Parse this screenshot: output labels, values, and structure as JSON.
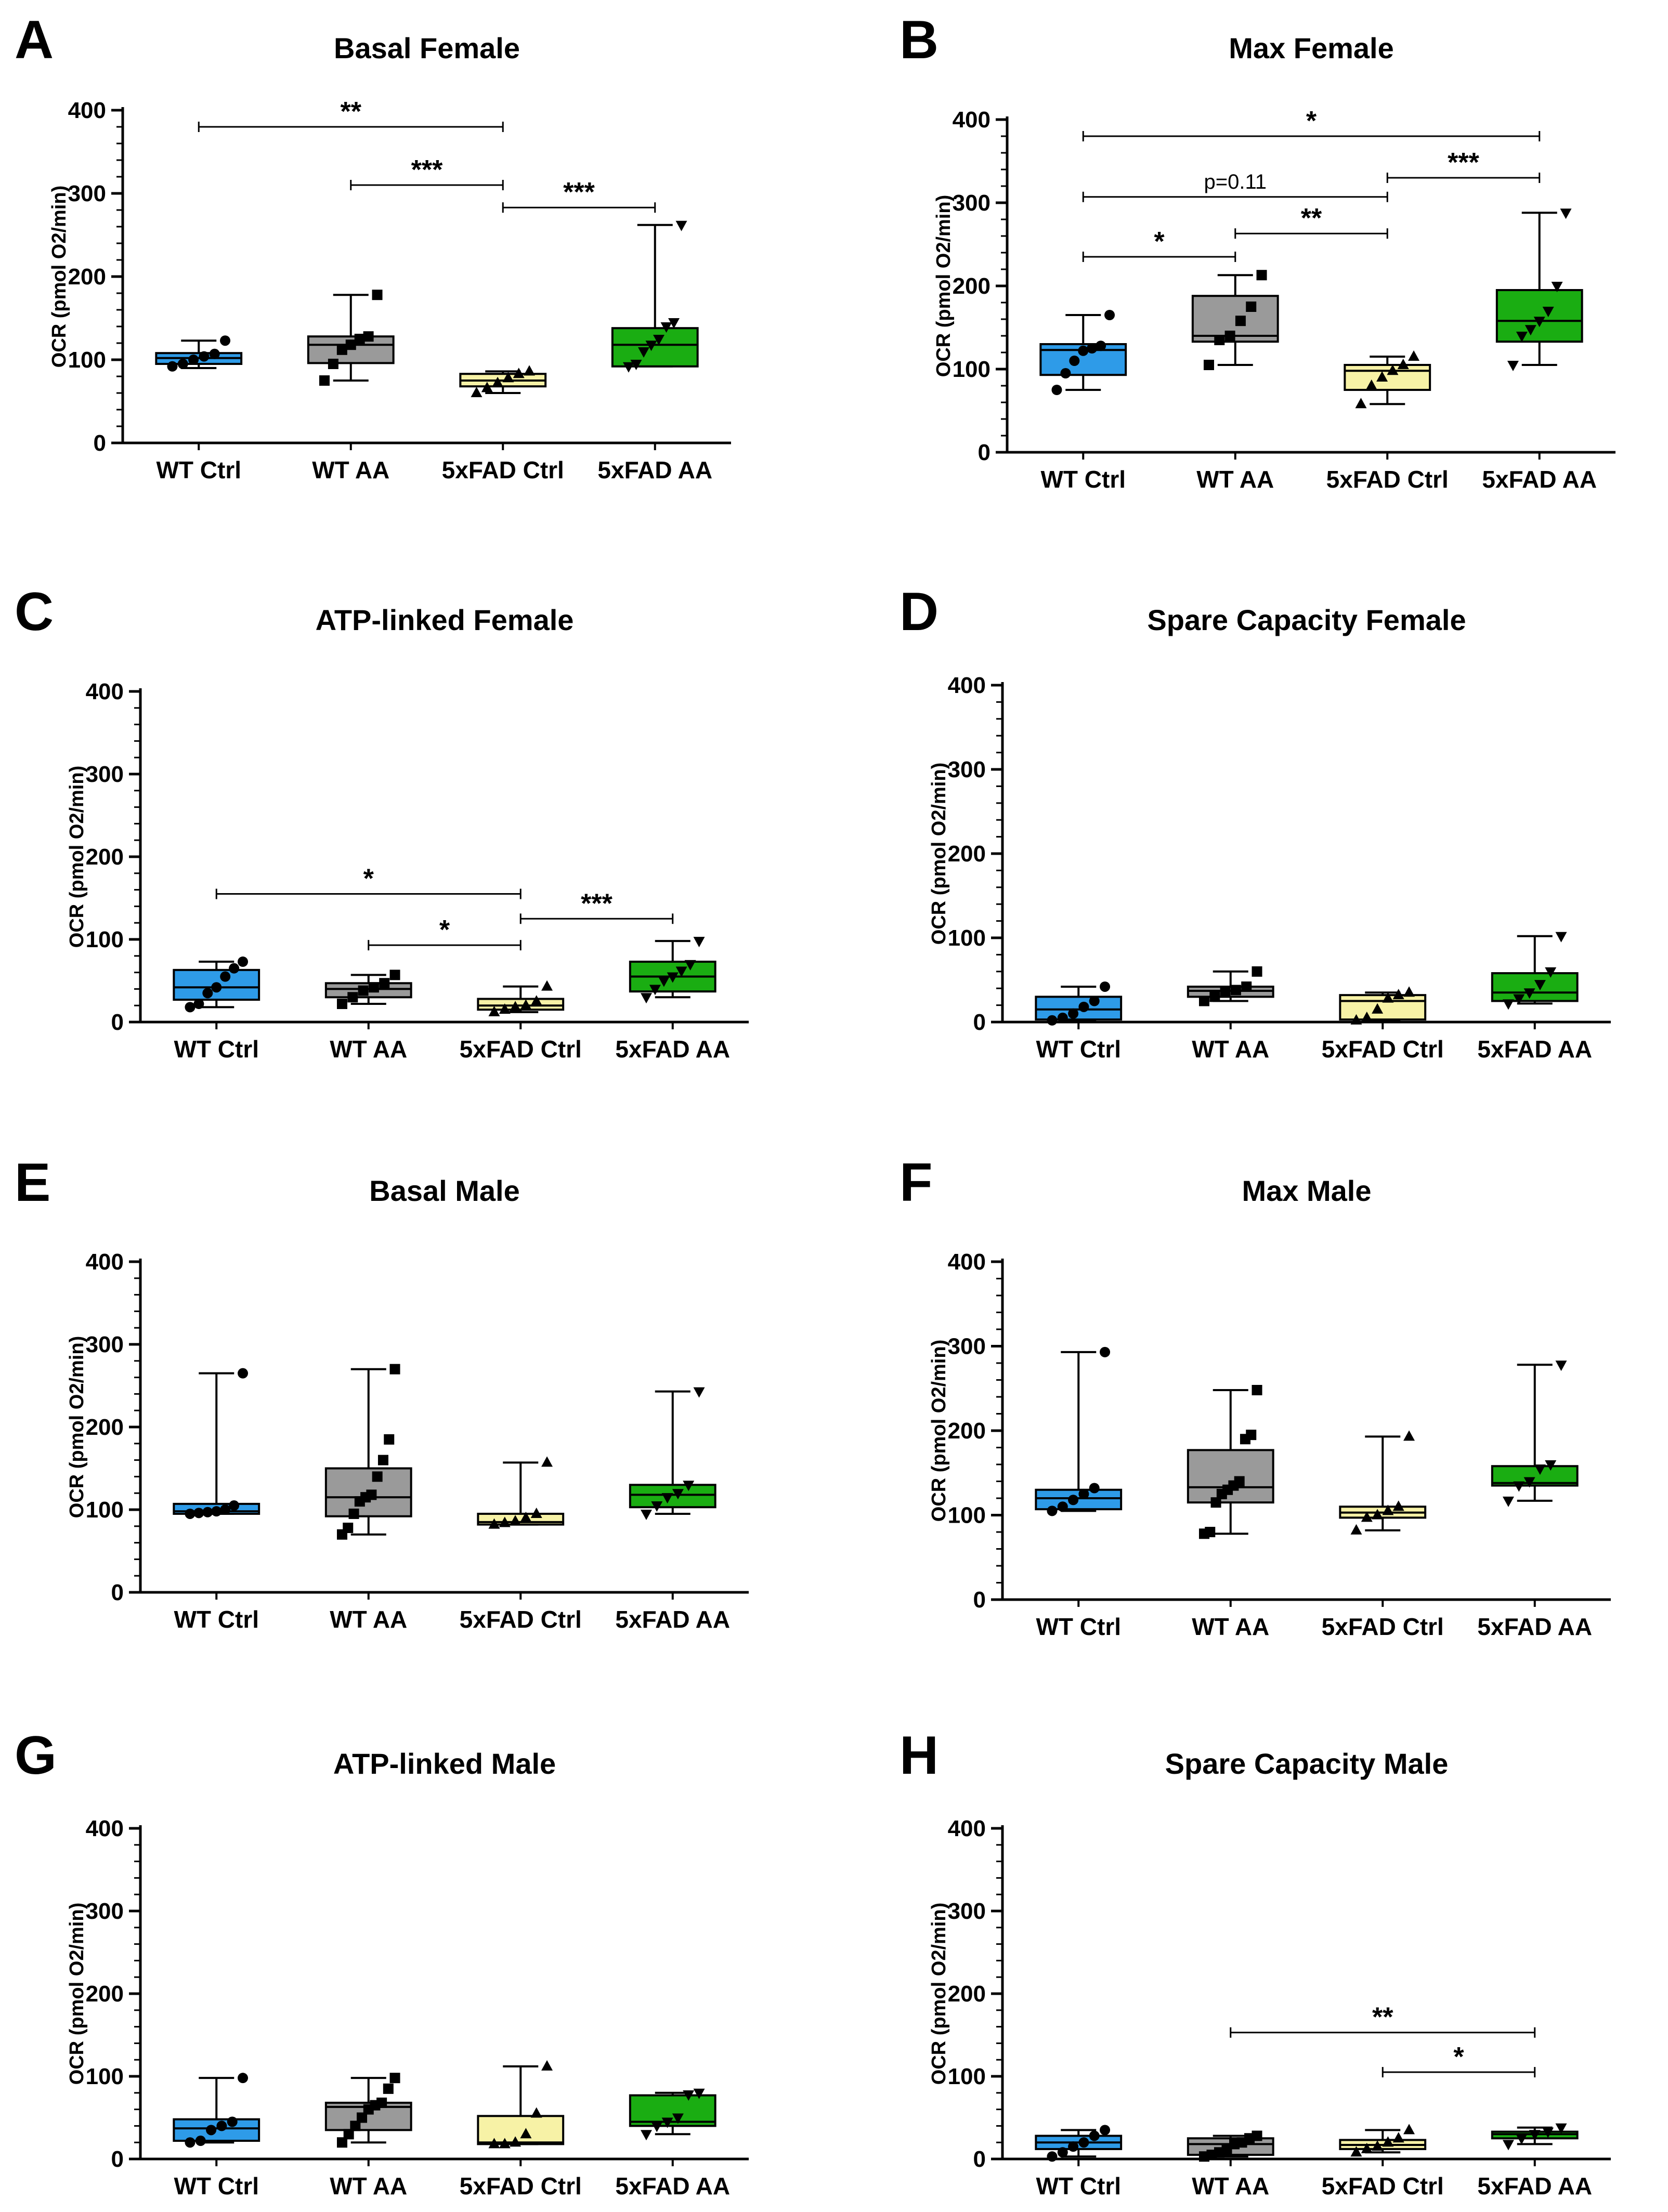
{
  "figure": {
    "groups": [
      "WT Ctrl",
      "WT AA",
      "5xFAD Ctrl",
      "5xFAD AA"
    ],
    "group_colors": [
      "#2e9be8",
      "#9a9a9a",
      "#f7f2a6",
      "#1aad12"
    ],
    "ylabel": "OCR (pmol O2/min)"
  },
  "chart_data": [
    {
      "panel": "A",
      "title": "Basal Female",
      "type": "box",
      "categories": [
        "WT Ctrl",
        "WT AA",
        "5xFAD Ctrl",
        "5xFAD AA"
      ],
      "ylabel": "OCR (pmol O2/min)",
      "ylim": [
        0,
        400
      ],
      "yticks": [
        0,
        100,
        200,
        300,
        400
      ],
      "boxes": [
        {
          "min": 90,
          "q1": 95,
          "median": 102,
          "q3": 108,
          "max": 123,
          "points": [
            92,
            95,
            100,
            104,
            107,
            123
          ]
        },
        {
          "min": 75,
          "q1": 96,
          "median": 118,
          "q3": 128,
          "max": 178,
          "points": [
            75,
            95,
            112,
            118,
            125,
            128,
            178
          ]
        },
        {
          "min": 60,
          "q1": 68,
          "median": 75,
          "q3": 83,
          "max": 86,
          "points": [
            60,
            66,
            72,
            78,
            83,
            86
          ]
        },
        {
          "min": 92,
          "q1": 92,
          "median": 118,
          "q3": 138,
          "max": 262,
          "points": [
            92,
            95,
            110,
            118,
            125,
            140,
            145,
            262
          ]
        }
      ],
      "significance": [
        {
          "from": 0,
          "to": 2,
          "label": "**",
          "y": 380
        },
        {
          "from": 1,
          "to": 2,
          "label": "***",
          "y": 310
        },
        {
          "from": 2,
          "to": 3,
          "label": "***",
          "y": 283
        }
      ]
    },
    {
      "panel": "B",
      "title": "Max Female",
      "type": "box",
      "categories": [
        "WT Ctrl",
        "WT AA",
        "5xFAD Ctrl",
        "5xFAD AA"
      ],
      "ylabel": "OCR (pmol O2/min)",
      "ylim": [
        0,
        400
      ],
      "yticks": [
        0,
        100,
        200,
        300,
        400
      ],
      "boxes": [
        {
          "min": 75,
          "q1": 93,
          "median": 123,
          "q3": 130,
          "max": 165,
          "points": [
            75,
            95,
            110,
            122,
            125,
            128,
            165
          ]
        },
        {
          "min": 105,
          "q1": 133,
          "median": 140,
          "q3": 188,
          "max": 213,
          "points": [
            105,
            135,
            140,
            158,
            175,
            213
          ]
        },
        {
          "min": 58,
          "q1": 75,
          "median": 98,
          "q3": 105,
          "max": 115,
          "points": [
            58,
            80,
            90,
            98,
            105,
            115
          ]
        },
        {
          "min": 105,
          "q1": 133,
          "median": 158,
          "q3": 195,
          "max": 288,
          "points": [
            105,
            140,
            148,
            158,
            170,
            200,
            288
          ]
        }
      ],
      "significance": [
        {
          "from": 0,
          "to": 3,
          "label": "*",
          "y": 380
        },
        {
          "from": 0,
          "to": 2,
          "label": "p=0.11",
          "y": 307
        },
        {
          "from": 2,
          "to": 3,
          "label": "***",
          "y": 330
        },
        {
          "from": 1,
          "to": 2,
          "label": "**",
          "y": 263
        },
        {
          "from": 0,
          "to": 1,
          "label": "*",
          "y": 235
        }
      ]
    },
    {
      "panel": "C",
      "title": "ATP-linked Female",
      "type": "box",
      "categories": [
        "WT Ctrl",
        "WT AA",
        "5xFAD Ctrl",
        "5xFAD AA"
      ],
      "ylabel": "OCR (pmol O2/min)",
      "ylim": [
        0,
        400
      ],
      "yticks": [
        0,
        100,
        200,
        300,
        400
      ],
      "boxes": [
        {
          "min": 18,
          "q1": 27,
          "median": 42,
          "q3": 63,
          "max": 73,
          "points": [
            18,
            22,
            35,
            42,
            55,
            65,
            73
          ]
        },
        {
          "min": 22,
          "q1": 30,
          "median": 40,
          "q3": 47,
          "max": 57,
          "points": [
            22,
            30,
            38,
            42,
            47,
            57
          ]
        },
        {
          "min": 12,
          "q1": 15,
          "median": 20,
          "q3": 28,
          "max": 43,
          "points": [
            12,
            15,
            18,
            20,
            25,
            43
          ]
        },
        {
          "min": 30,
          "q1": 37,
          "median": 55,
          "q3": 73,
          "max": 98,
          "points": [
            30,
            40,
            50,
            55,
            62,
            70,
            98
          ]
        }
      ],
      "significance": [
        {
          "from": 0,
          "to": 2,
          "label": "*",
          "y": 155
        },
        {
          "from": 1,
          "to": 2,
          "label": "*",
          "y": 93
        },
        {
          "from": 2,
          "to": 3,
          "label": "***",
          "y": 125
        }
      ]
    },
    {
      "panel": "D",
      "title": "Spare Capacity Female",
      "type": "box",
      "categories": [
        "WT Ctrl",
        "WT AA",
        "5xFAD Ctrl",
        "5xFAD AA"
      ],
      "ylabel": "OCR (pmol O2/min)",
      "ylim": [
        0,
        400
      ],
      "yticks": [
        0,
        100,
        200,
        300,
        400
      ],
      "boxes": [
        {
          "min": 2,
          "q1": 3,
          "median": 15,
          "q3": 30,
          "max": 42,
          "points": [
            2,
            5,
            10,
            18,
            25,
            42
          ]
        },
        {
          "min": 25,
          "q1": 30,
          "median": 37,
          "q3": 42,
          "max": 60,
          "points": [
            25,
            30,
            35,
            38,
            42,
            60
          ]
        },
        {
          "min": 2,
          "q1": 3,
          "median": 25,
          "q3": 32,
          "max": 35,
          "points": [
            2,
            5,
            15,
            28,
            32,
            35
          ]
        },
        {
          "min": 22,
          "q1": 25,
          "median": 35,
          "q3": 58,
          "max": 102,
          "points": [
            22,
            28,
            35,
            45,
            60,
            102
          ]
        }
      ],
      "significance": []
    },
    {
      "panel": "E",
      "title": "Basal Male",
      "type": "box",
      "categories": [
        "WT Ctrl",
        "WT AA",
        "5xFAD Ctrl",
        "5xFAD AA"
      ],
      "ylabel": "OCR (pmol O2/min)",
      "ylim": [
        0,
        400
      ],
      "yticks": [
        0,
        100,
        200,
        300,
        400
      ],
      "boxes": [
        {
          "min": 95,
          "q1": 95,
          "median": 98,
          "q3": 107,
          "max": 265,
          "points": [
            95,
            96,
            97,
            98,
            100,
            105,
            265
          ]
        },
        {
          "min": 70,
          "q1": 92,
          "median": 115,
          "q3": 150,
          "max": 270,
          "points": [
            70,
            78,
            95,
            110,
            115,
            118,
            140,
            160,
            185,
            270
          ]
        },
        {
          "min": 82,
          "q1": 82,
          "median": 85,
          "q3": 95,
          "max": 157,
          "points": [
            82,
            84,
            86,
            90,
            95,
            157
          ]
        },
        {
          "min": 95,
          "q1": 103,
          "median": 118,
          "q3": 130,
          "max": 243,
          "points": [
            95,
            105,
            115,
            120,
            130,
            243
          ]
        }
      ],
      "significance": []
    },
    {
      "panel": "F",
      "title": "Max Male",
      "type": "box",
      "categories": [
        "WT Ctrl",
        "WT AA",
        "5xFAD Ctrl",
        "5xFAD AA"
      ],
      "ylabel": "OCR (pmol O2/min)",
      "ylim": [
        0,
        400
      ],
      "yticks": [
        0,
        100,
        200,
        300,
        400
      ],
      "boxes": [
        {
          "min": 105,
          "q1": 107,
          "median": 120,
          "q3": 130,
          "max": 293,
          "points": [
            105,
            110,
            118,
            125,
            132,
            293
          ]
        },
        {
          "min": 78,
          "q1": 115,
          "median": 133,
          "q3": 177,
          "max": 248,
          "points": [
            78,
            80,
            115,
            125,
            130,
            135,
            140,
            190,
            195,
            248
          ]
        },
        {
          "min": 82,
          "q1": 97,
          "median": 103,
          "q3": 110,
          "max": 193,
          "points": [
            82,
            97,
            100,
            105,
            110,
            193
          ]
        },
        {
          "min": 117,
          "q1": 135,
          "median": 138,
          "q3": 158,
          "max": 278,
          "points": [
            117,
            135,
            140,
            155,
            160,
            278
          ]
        }
      ],
      "significance": []
    },
    {
      "panel": "G",
      "title": "ATP-linked Male",
      "type": "box",
      "categories": [
        "WT Ctrl",
        "WT AA",
        "5xFAD Ctrl",
        "5xFAD AA"
      ],
      "ylabel": "OCR (pmol O2/min)",
      "ylim": [
        0,
        400
      ],
      "yticks": [
        0,
        100,
        200,
        300,
        400
      ],
      "boxes": [
        {
          "min": 20,
          "q1": 22,
          "median": 37,
          "q3": 48,
          "max": 98,
          "points": [
            20,
            22,
            35,
            40,
            45,
            98
          ]
        },
        {
          "min": 20,
          "q1": 35,
          "median": 63,
          "q3": 68,
          "max": 98,
          "points": [
            20,
            30,
            40,
            50,
            60,
            65,
            68,
            85,
            98
          ]
        },
        {
          "min": 18,
          "q1": 18,
          "median": 20,
          "q3": 52,
          "max": 112,
          "points": [
            18,
            18,
            20,
            30,
            55,
            112
          ]
        },
        {
          "min": 30,
          "q1": 40,
          "median": 45,
          "q3": 77,
          "max": 80,
          "points": [
            30,
            40,
            45,
            50,
            78,
            80
          ]
        }
      ],
      "significance": []
    },
    {
      "panel": "H",
      "title": "Spare Capacity Male",
      "type": "box",
      "categories": [
        "WT Ctrl",
        "WT AA",
        "5xFAD Ctrl",
        "5xFAD AA"
      ],
      "ylabel": "OCR (pmol O2/min)",
      "ylim": [
        0,
        400
      ],
      "yticks": [
        0,
        100,
        200,
        300,
        400
      ],
      "boxes": [
        {
          "min": 3,
          "q1": 12,
          "median": 20,
          "q3": 28,
          "max": 35,
          "points": [
            3,
            8,
            15,
            20,
            28,
            35
          ]
        },
        {
          "min": 3,
          "q1": 5,
          "median": 18,
          "q3": 25,
          "max": 28,
          "points": [
            3,
            5,
            8,
            12,
            18,
            20,
            25,
            28
          ]
        },
        {
          "min": 8,
          "q1": 12,
          "median": 17,
          "q3": 23,
          "max": 35,
          "points": [
            8,
            12,
            15,
            20,
            25,
            35
          ]
        },
        {
          "min": 18,
          "q1": 25,
          "median": 30,
          "q3": 33,
          "max": 38,
          "points": [
            18,
            25,
            30,
            33,
            38
          ]
        }
      ],
      "significance": [
        {
          "from": 1,
          "to": 3,
          "label": "**",
          "y": 153
        },
        {
          "from": 2,
          "to": 3,
          "label": "*",
          "y": 105
        }
      ]
    }
  ]
}
